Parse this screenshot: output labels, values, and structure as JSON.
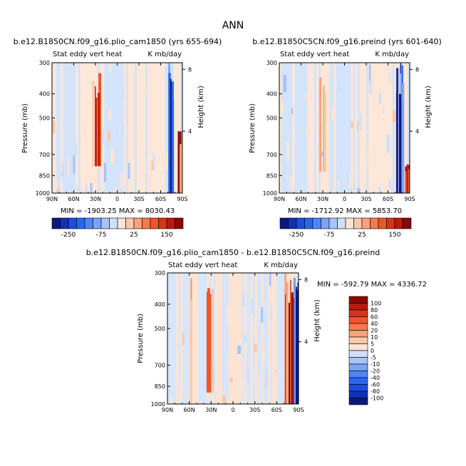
{
  "page": {
    "title": "ANN"
  },
  "panels": [
    {
      "case_title": "b.e12.B1850CN.f09_g16.plio_cam1850 (yrs 655-694)",
      "variable_label": "Stat eddy vert heat",
      "units_label": "K mb/day",
      "stats_text": "MIN = -1903.25   MAX = 8030.43"
    },
    {
      "case_title": "b.e12.B1850C5CN.f09_g16.preind (yrs 601-640)",
      "variable_label": "Stat eddy vert heat",
      "units_label": "K mb/day",
      "stats_text": "MIN = -1712.92   MAX = 5853.70"
    },
    {
      "case_title": "b.e12.B1850CN.f09_g16.plio_cam1850 - b.e12.B1850C5CN.f09_g16.preind",
      "variable_label": "Stat eddy vert heat",
      "units_label": "K mb/day",
      "stats_text": "MIN = -592.79   MAX = 4336.72"
    }
  ],
  "axes": {
    "ylabel": "Pressure (mb)",
    "y2label": "Height (km)"
  },
  "colorbar_top": {
    "colors": [
      "#0a1a7a",
      "#1030b8",
      "#1a4de0",
      "#2a66f0",
      "#4f86f5",
      "#7aa4f7",
      "#a7c3f9",
      "#cfe0fb",
      "#fde4d2",
      "#fbc8aa",
      "#f9a27c",
      "#f7794f",
      "#f0542a",
      "#d8321a",
      "#b81a10",
      "#8c0808"
    ],
    "ticklabels": [
      "-250",
      "-75",
      "25",
      "150"
    ]
  },
  "colorbar_diff": {
    "colors": [
      "#0a1a7a",
      "#1030b8",
      "#1a4de0",
      "#2a66f0",
      "#4f86f5",
      "#7aa4f7",
      "#a7c3f9",
      "#cfe0fb",
      "#fde4d2",
      "#fbc8aa",
      "#f9a27c",
      "#f7794f",
      "#f0542a",
      "#d8321a",
      "#b81a10",
      "#8c0808"
    ],
    "ticklabels": [
      "100",
      "80",
      "60",
      "40",
      "20",
      "10",
      "5",
      "0",
      "-5",
      "-10",
      "-20",
      "-40",
      "-60",
      "-80",
      "-100"
    ]
  },
  "chart_data": [
    {
      "type": "heatmap",
      "title": "b.e12.B1850CN.f09_g16.plio_cam1850 (yrs 655-694)",
      "ylabel": "Pressure (mb)",
      "y2label": "Height (km)",
      "x_ticks": [
        "90N",
        "60N",
        "30N",
        "0",
        "30S",
        "60S",
        "90S"
      ],
      "y_ticks": [
        300,
        400,
        500,
        700,
        850,
        1000
      ],
      "y2_ticks": [
        8,
        4
      ],
      "ylim": [
        1000,
        300
      ],
      "min": -1903.25,
      "max": 8030.43,
      "features": [
        {
          "lat": 30,
          "p_top": 320,
          "p_bot": 780,
          "sign": "positive",
          "strength": 0.6
        },
        {
          "lat": -75,
          "p_top": 300,
          "p_bot": 1000,
          "sign": "negative",
          "strength": 1.0
        },
        {
          "lat": -87,
          "p_top": 560,
          "p_bot": 1000,
          "sign": "positive",
          "strength": 1.0
        }
      ]
    },
    {
      "type": "heatmap",
      "title": "b.e12.B1850C5CN.f09_g16.preind (yrs 601-640)",
      "ylabel": "Pressure (mb)",
      "y2label": "Height (km)",
      "x_ticks": [
        "90N",
        "60N",
        "30N",
        "0",
        "30S",
        "60S",
        "90S"
      ],
      "y_ticks": [
        300,
        400,
        500,
        700,
        850,
        1000
      ],
      "y2_ticks": [
        8,
        4
      ],
      "ylim": [
        1000,
        300
      ],
      "min": -1712.92,
      "max": 5853.7,
      "features": [
        {
          "lat": 30,
          "p_top": 340,
          "p_bot": 820,
          "sign": "positive",
          "strength": 0.5
        },
        {
          "lat": -75,
          "p_top": 300,
          "p_bot": 1000,
          "sign": "negative",
          "strength": 1.0
        },
        {
          "lat": -87,
          "p_top": 760,
          "p_bot": 1000,
          "sign": "positive",
          "strength": 0.9
        }
      ]
    },
    {
      "type": "heatmap",
      "title": "b.e12.B1850CN.f09_g16.plio_cam1850 - b.e12.B1850C5CN.f09_g16.preind",
      "ylabel": "Pressure (mb)",
      "y2label": "Height (km)",
      "x_ticks": [
        "90N",
        "60N",
        "30N",
        "0",
        "30S",
        "60S",
        "90S"
      ],
      "y_ticks": [
        300,
        400,
        500,
        700,
        850,
        1000
      ],
      "y2_ticks": [
        8,
        4
      ],
      "ylim": [
        1000,
        300
      ],
      "min": -592.79,
      "max": 4336.72,
      "features": [
        {
          "lat": 60,
          "p_top": 300,
          "p_bot": 1000,
          "sign": "positive",
          "strength": 0.3
        },
        {
          "lat": 33,
          "p_top": 300,
          "p_bot": 900,
          "sign": "positive",
          "strength": 0.45
        },
        {
          "lat": -75,
          "p_top": 300,
          "p_bot": 1000,
          "sign": "positive",
          "strength": 0.9
        },
        {
          "lat": -85,
          "p_top": 300,
          "p_bot": 1000,
          "sign": "negative",
          "strength": 0.9
        }
      ]
    }
  ]
}
